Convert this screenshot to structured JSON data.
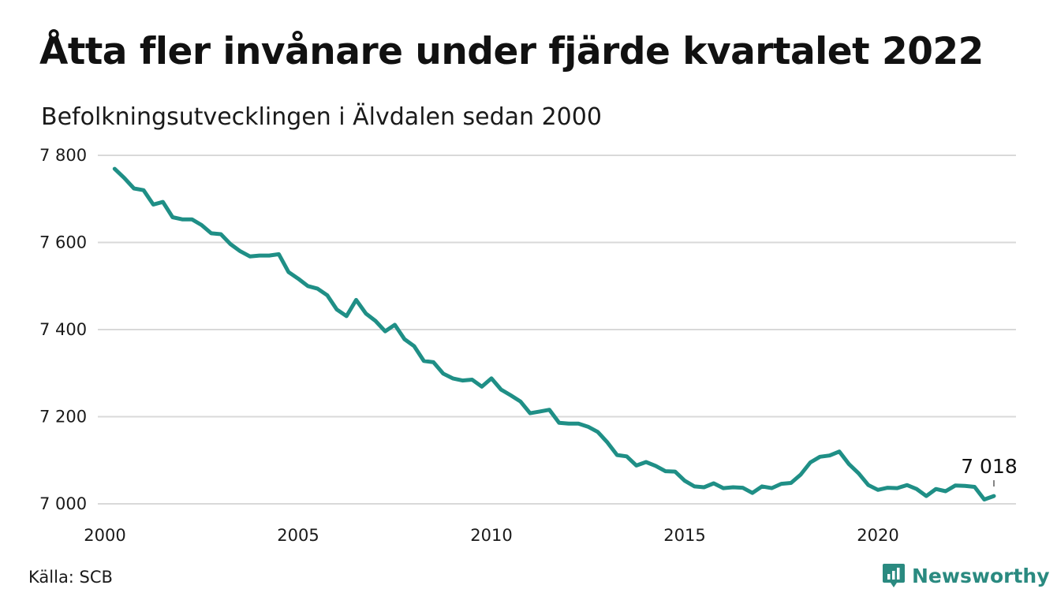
{
  "title": "Åtta fler invånare under fjärde kvartalet 2022",
  "subtitle": "Befolkningsutvecklingen i Älvdalen sedan 2000",
  "source": "Källa: SCB",
  "brand": {
    "name": "Newsworthy",
    "icon": "newsworthy-logo-icon",
    "color": "#2a8a80"
  },
  "chart_data": {
    "type": "line",
    "title": "Åtta fler invånare under fjärde kvartalet 2022",
    "subtitle": "Befolkningsutvecklingen i Älvdalen sedan 2000",
    "xlabel": "",
    "ylabel": "",
    "xlim": [
      2000,
      2023.2
    ],
    "ylim": [
      7000,
      7800
    ],
    "xticks": [
      2000,
      2005,
      2010,
      2015,
      2020
    ],
    "xtick_labels": [
      "2000",
      "2005",
      "2010",
      "2015",
      "2020"
    ],
    "yticks": [
      7000,
      7200,
      7400,
      7600,
      7800
    ],
    "ytick_labels": [
      "7 000",
      "7 200",
      "7 400",
      "7 600",
      "7 800"
    ],
    "grid": "horizontal",
    "line_color": "#1f8f86",
    "annotation": {
      "text": "7 018",
      "x": 2023.0,
      "y": 7018
    },
    "series": [
      {
        "x": [
          2000.25,
          2000.5,
          2000.75,
          2001.0,
          2001.25,
          2001.5,
          2001.75,
          2002.0,
          2002.25,
          2002.5,
          2002.75,
          2003.0,
          2003.25,
          2003.5,
          2003.75,
          2004.0,
          2004.25,
          2004.5,
          2004.75,
          2005.0,
          2005.25,
          2005.5,
          2005.75,
          2006.0,
          2006.25,
          2006.5,
          2006.75,
          2007.0,
          2007.25,
          2007.5,
          2007.75,
          2008.0,
          2008.25,
          2008.5,
          2008.75,
          2009.0,
          2009.25,
          2009.5,
          2009.75,
          2010.0,
          2010.25,
          2010.5,
          2010.75,
          2011.0,
          2011.25,
          2011.5,
          2011.75,
          2012.0,
          2012.25,
          2012.5,
          2012.75,
          2013.0,
          2013.25,
          2013.5,
          2013.75,
          2014.0,
          2014.25,
          2014.5,
          2014.75,
          2015.0,
          2015.25,
          2015.5,
          2015.75,
          2016.0,
          2016.25,
          2016.5,
          2016.75,
          2017.0,
          2017.25,
          2017.5,
          2017.75,
          2018.0,
          2018.25,
          2018.5,
          2018.75,
          2019.0,
          2019.25,
          2019.5,
          2019.75,
          2020.0,
          2020.25,
          2020.5,
          2020.75,
          2021.0,
          2021.25,
          2021.5,
          2021.75,
          2022.0,
          2022.25,
          2022.5,
          2022.75,
          2023.0
        ],
        "values": [
          7769,
          7748,
          7724,
          7720,
          7687,
          7693,
          7658,
          7653,
          7653,
          7640,
          7621,
          7619,
          7596,
          7580,
          7568,
          7570,
          7570,
          7573,
          7532,
          7517,
          7500,
          7494,
          7479,
          7446,
          7431,
          7468,
          7437,
          7420,
          7396,
          7411,
          7378,
          7362,
          7328,
          7325,
          7299,
          7288,
          7283,
          7285,
          7269,
          7288,
          7262,
          7249,
          7235,
          7208,
          7212,
          7216,
          7186,
          7184,
          7184,
          7177,
          7165,
          7141,
          7112,
          7109,
          7088,
          7096,
          7087,
          7075,
          7074,
          7053,
          7040,
          7038,
          7047,
          7036,
          7038,
          7037,
          7025,
          7040,
          7036,
          7046,
          7048,
          7067,
          7095,
          7108,
          7111,
          7120,
          7091,
          7070,
          7043,
          7032,
          7037,
          7036,
          7043,
          7034,
          7018,
          7034,
          7029,
          7042,
          7041,
          7039,
          7010,
          7018
        ]
      }
    ]
  }
}
